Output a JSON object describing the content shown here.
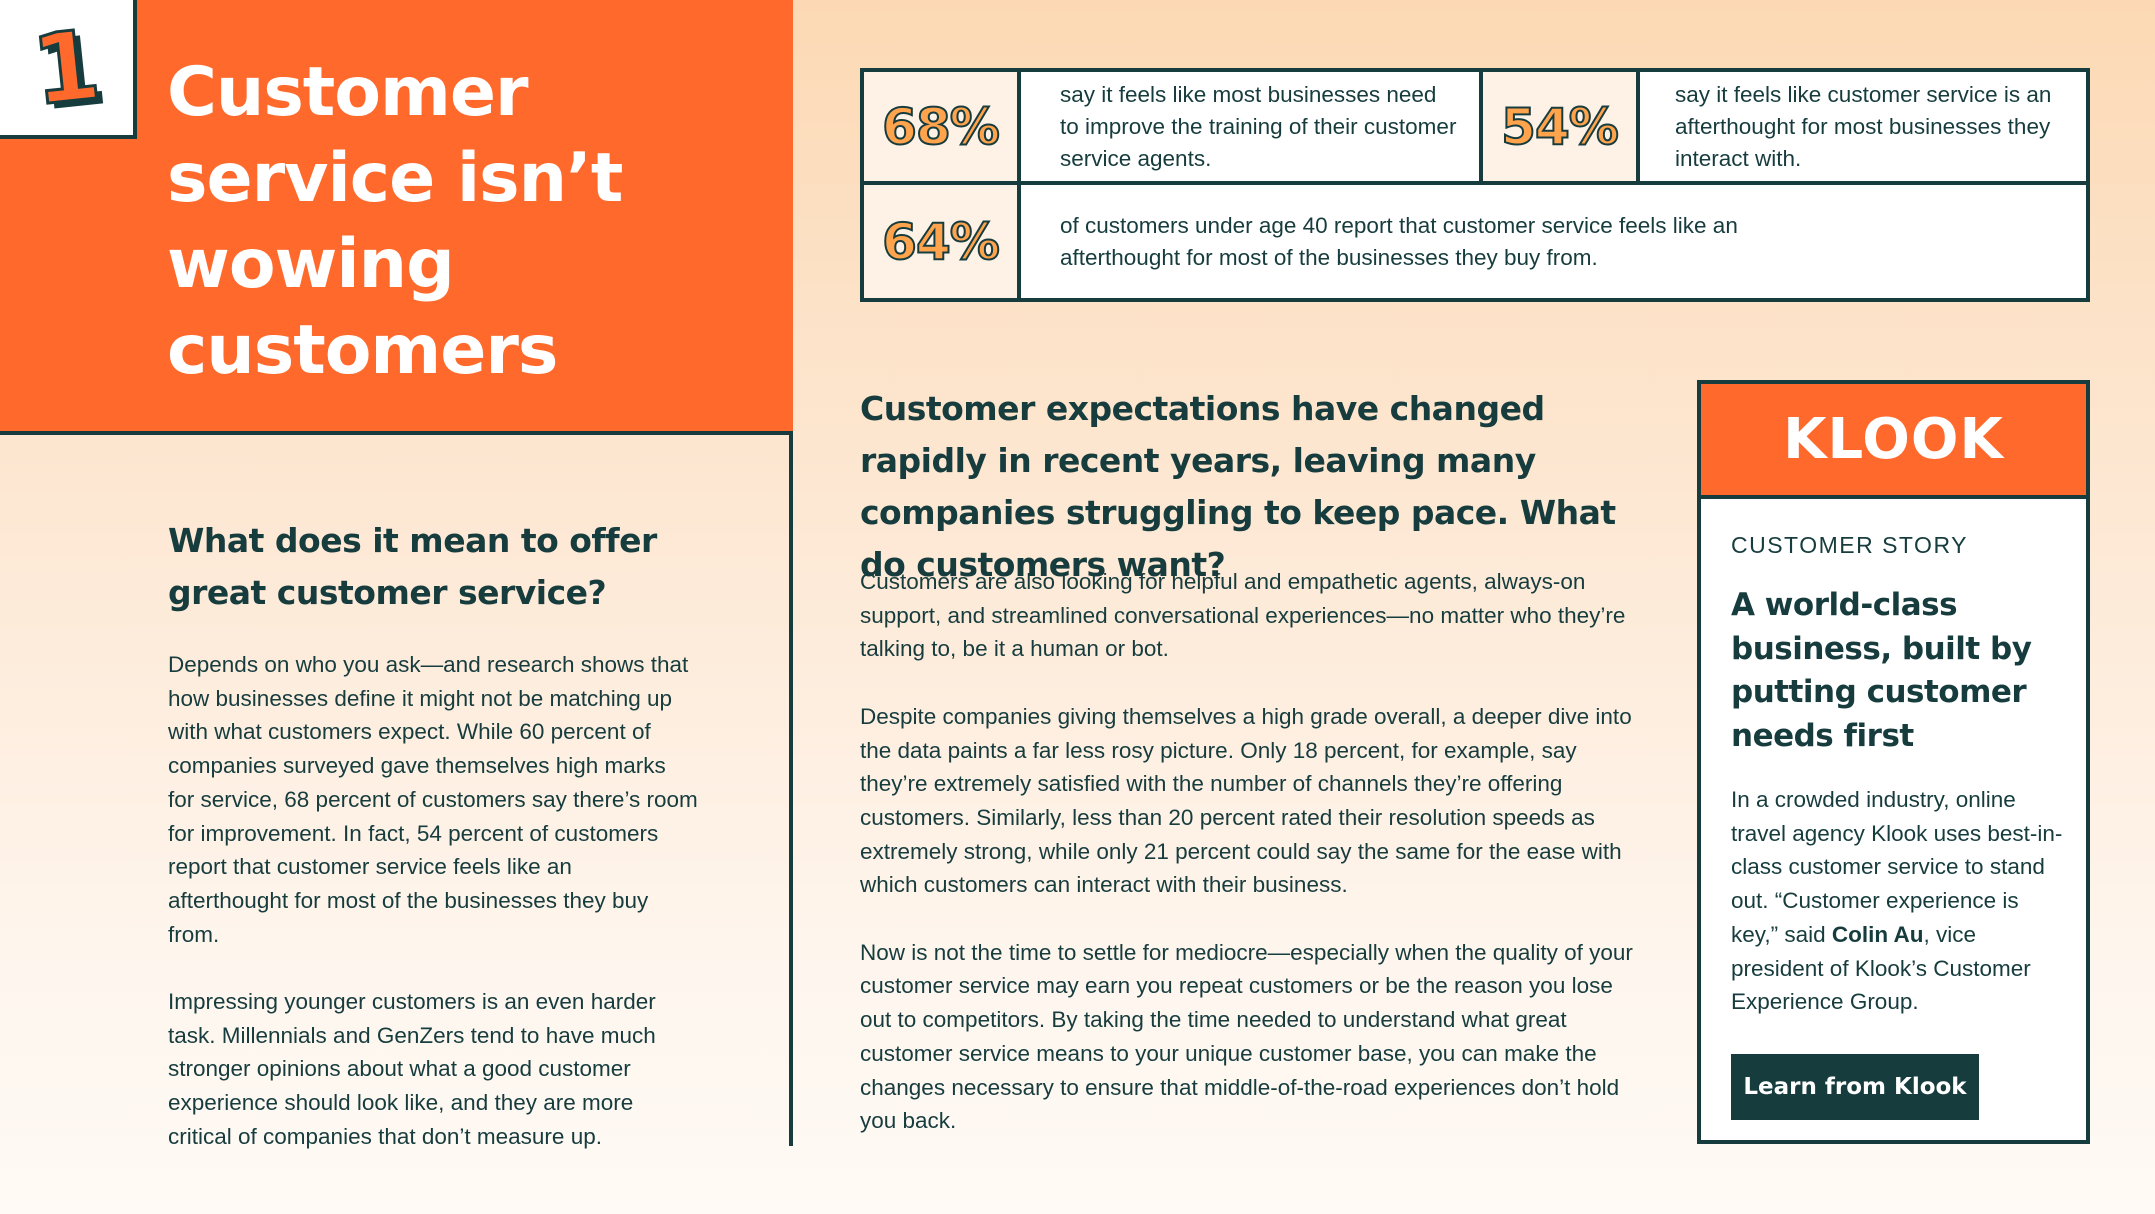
{
  "section_number": "1",
  "hero": {
    "title": "Customer service isn’t wowing customers"
  },
  "left": {
    "subheading": "What does it mean to offer great customer service?",
    "paragraphs": [
      "Depends on who you ask—and research shows that how businesses define it might not be matching up with what customers expect. While 60 percent of companies surveyed gave themselves high marks for service, 68 percent of customers say there’s room for improvement. In fact, 54 percent of customers report that customer service feels like an afterthought for most of the businesses they buy from.",
      "Impressing younger customers is an even harder task. Millennials and GenZers tend to have much stronger opinions about what a good customer experience should look like, and they are more critical of companies that don’t measure up."
    ]
  },
  "stats": [
    {
      "value": "68%",
      "text": "say it feels like most businesses need to improve the training of their customer service agents."
    },
    {
      "value": "54%",
      "text": "say it feels like customer service is an afterthought for most businesses they interact with."
    },
    {
      "value": "64%",
      "text": "of customers under age 40 report that customer service feels like an afterthought for most of the businesses they buy from."
    }
  ],
  "middle": {
    "heading": "Customer expectations have changed rapidly in recent years, leaving many companies struggling to keep pace. What do customers want?",
    "paragraphs": [
      "Customers are also looking for helpful and empathetic agents, always-on support, and streamlined conversational experiences—no matter who they’re talking to, be it a human or bot.",
      "Despite companies giving themselves a high grade overall, a deeper dive into the data paints a far less rosy picture. Only 18 percent, for example, say they’re extremely satisfied with the number of channels they’re offering customers. Similarly, less than 20 percent rated their resolution speeds as extremely strong, while only 21 percent could say the same for the ease with which customers can interact with their business.",
      "Now is not the time to settle for mediocre—especially when the quality of your customer service may earn you repeat customers or be the reason you lose out to competitors. By taking the time needed to understand what great customer service means to your unique customer base, you can make the changes necessary to ensure that middle-of-the-road experiences don’t hold you back."
    ]
  },
  "card": {
    "logo": "KLOOK",
    "label": "CUSTOMER STORY",
    "title": "A world-class business, built by putting customer needs first",
    "body_before": "In a crowded industry, online travel agency Klook uses best-in-class customer service to stand out. “Customer experience is key,” said ",
    "body_bold": "Colin Au",
    "body_after": ", vice president of Klook’s Customer Experience Group.",
    "button": "Learn from Klook"
  },
  "colors": {
    "accent_orange": "#ff6a2c",
    "dark_teal": "#173c3e",
    "stat_orange": "#ffa34d"
  }
}
